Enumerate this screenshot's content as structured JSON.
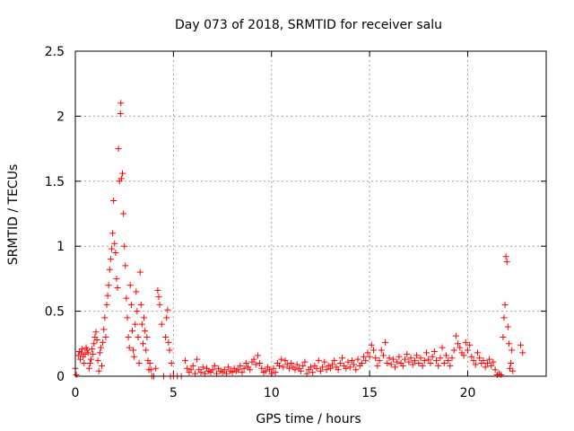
{
  "colors": {
    "series": "#ff0000",
    "grid": "#a0a0a0",
    "axis": "#000000",
    "background": "#ffffff"
  },
  "chart_data": {
    "type": "scatter",
    "title": "Day 073 of 2018, SRMTID for receiver salu",
    "xlabel": "GPS time / hours",
    "ylabel": "SRMTID / TECUs",
    "xlim": [
      0,
      24
    ],
    "ylim": [
      0,
      2.5
    ],
    "x_ticks": [
      0,
      5,
      10,
      15,
      20
    ],
    "x_tick_labels": [
      "0",
      "5",
      "10",
      "15",
      "20"
    ],
    "y_ticks": [
      0,
      0.5,
      1,
      1.5,
      2,
      2.5
    ],
    "y_tick_labels": [
      "0",
      "0.5",
      "1",
      "1.5",
      "2",
      "2.5"
    ],
    "grid": true,
    "marker": "plus",
    "series": [
      {
        "name": "SRMTID",
        "points": [
          [
            0.0,
            0.06
          ],
          [
            0.05,
            0.01
          ],
          [
            0.15,
            0.16
          ],
          [
            0.2,
            0.19
          ],
          [
            0.25,
            0.13
          ],
          [
            0.3,
            0.18
          ],
          [
            0.35,
            0.21
          ],
          [
            0.4,
            0.15
          ],
          [
            0.45,
            0.1
          ],
          [
            0.5,
            0.17
          ],
          [
            0.55,
            0.22
          ],
          [
            0.6,
            0.2
          ],
          [
            0.65,
            0.18
          ],
          [
            0.7,
            0.06
          ],
          [
            0.75,
            0.1
          ],
          [
            0.8,
            0.13
          ],
          [
            0.85,
            0.21
          ],
          [
            0.9,
            0.17
          ],
          [
            0.95,
            0.25
          ],
          [
            1.0,
            0.3
          ],
          [
            1.05,
            0.34
          ],
          [
            1.1,
            0.28
          ],
          [
            1.15,
            0.12
          ],
          [
            1.2,
            0.04
          ],
          [
            1.25,
            0.18
          ],
          [
            1.3,
            0.22
          ],
          [
            1.35,
            0.08
          ],
          [
            1.4,
            0.26
          ],
          [
            1.45,
            0.36
          ],
          [
            1.5,
            0.45
          ],
          [
            1.55,
            0.3
          ],
          [
            1.6,
            0.55
          ],
          [
            1.65,
            0.62
          ],
          [
            1.7,
            0.7
          ],
          [
            1.75,
            0.82
          ],
          [
            1.8,
            0.9
          ],
          [
            1.85,
            0.98
          ],
          [
            1.9,
            1.1
          ],
          [
            1.95,
            1.35
          ],
          [
            2.0,
            1.02
          ],
          [
            2.05,
            0.95
          ],
          [
            2.1,
            0.75
          ],
          [
            2.15,
            0.68
          ],
          [
            2.2,
            1.75
          ],
          [
            2.25,
            1.5
          ],
          [
            2.3,
            2.02
          ],
          [
            2.32,
            2.1
          ],
          [
            2.35,
            1.52
          ],
          [
            2.4,
            1.56
          ],
          [
            2.45,
            1.25
          ],
          [
            2.5,
            1.0
          ],
          [
            2.55,
            0.85
          ],
          [
            2.6,
            0.6
          ],
          [
            2.65,
            0.45
          ],
          [
            2.7,
            0.3
          ],
          [
            2.75,
            0.22
          ],
          [
            2.8,
            0.7
          ],
          [
            2.85,
            0.55
          ],
          [
            2.9,
            0.35
          ],
          [
            2.95,
            0.2
          ],
          [
            3.0,
            0.15
          ],
          [
            3.05,
            0.4
          ],
          [
            3.1,
            0.65
          ],
          [
            3.15,
            0.5
          ],
          [
            3.2,
            0.3
          ],
          [
            3.25,
            0.1
          ],
          [
            3.3,
            0.8
          ],
          [
            3.35,
            0.55
          ],
          [
            3.4,
            0.4
          ],
          [
            3.45,
            0.25
          ],
          [
            3.5,
            0.45
          ],
          [
            3.55,
            0.35
          ],
          [
            3.6,
            0.2
          ],
          [
            3.65,
            0.3
          ],
          [
            3.7,
            0.12
          ],
          [
            3.75,
            0.05
          ],
          [
            3.8,
            0.1
          ],
          [
            3.85,
            0.05
          ],
          [
            3.9,
            0.0
          ],
          [
            4.0,
            0.0
          ],
          [
            4.1,
            0.06
          ],
          [
            4.2,
            0.66
          ],
          [
            4.25,
            0.61
          ],
          [
            4.3,
            0.55
          ],
          [
            4.4,
            0.4
          ],
          [
            4.5,
            0.0
          ],
          [
            4.6,
            0.3
          ],
          [
            4.65,
            0.45
          ],
          [
            4.7,
            0.51
          ],
          [
            4.75,
            0.26
          ],
          [
            4.8,
            0.2
          ],
          [
            4.85,
            0.0
          ],
          [
            4.9,
            0.1
          ],
          [
            5.0,
            0.0
          ],
          [
            5.2,
            0.0
          ],
          [
            5.4,
            0.0
          ],
          [
            5.6,
            0.12
          ],
          [
            5.7,
            0.06
          ],
          [
            5.8,
            0.03
          ],
          [
            5.9,
            0.05
          ],
          [
            6.0,
            0.08
          ],
          [
            6.1,
            0.02
          ],
          [
            6.2,
            0.13
          ],
          [
            6.3,
            0.05
          ],
          [
            6.4,
            0.03
          ],
          [
            6.5,
            0.07
          ],
          [
            6.6,
            0.02
          ],
          [
            6.7,
            0.06
          ],
          [
            6.8,
            0.04
          ],
          [
            6.9,
            0.03
          ],
          [
            7.0,
            0.05
          ],
          [
            7.1,
            0.08
          ],
          [
            7.2,
            0.02
          ],
          [
            7.3,
            0.06
          ],
          [
            7.4,
            0.04
          ],
          [
            7.5,
            0.03
          ],
          [
            7.6,
            0.05
          ],
          [
            7.7,
            0.02
          ],
          [
            7.8,
            0.07
          ],
          [
            7.9,
            0.04
          ],
          [
            8.0,
            0.03
          ],
          [
            8.1,
            0.06
          ],
          [
            8.2,
            0.04
          ],
          [
            8.3,
            0.05
          ],
          [
            8.4,
            0.08
          ],
          [
            8.5,
            0.03
          ],
          [
            8.6,
            0.06
          ],
          [
            8.7,
            0.1
          ],
          [
            8.8,
            0.07
          ],
          [
            8.9,
            0.05
          ],
          [
            9.0,
            0.11
          ],
          [
            9.1,
            0.13
          ],
          [
            9.2,
            0.09
          ],
          [
            9.3,
            0.16
          ],
          [
            9.4,
            0.1
          ],
          [
            9.5,
            0.06
          ],
          [
            9.6,
            0.03
          ],
          [
            9.7,
            0.04
          ],
          [
            9.8,
            0.07
          ],
          [
            9.9,
            0.05
          ],
          [
            10.0,
            0.02
          ],
          [
            10.1,
            0.06
          ],
          [
            10.2,
            0.03
          ],
          [
            10.3,
            0.1
          ],
          [
            10.4,
            0.08
          ],
          [
            10.5,
            0.13
          ],
          [
            10.6,
            0.07
          ],
          [
            10.7,
            0.12
          ],
          [
            10.8,
            0.09
          ],
          [
            10.9,
            0.06
          ],
          [
            11.0,
            0.1
          ],
          [
            11.1,
            0.07
          ],
          [
            11.2,
            0.05
          ],
          [
            11.3,
            0.09
          ],
          [
            11.4,
            0.06
          ],
          [
            11.5,
            0.04
          ],
          [
            11.6,
            0.08
          ],
          [
            11.7,
            0.11
          ],
          [
            11.8,
            0.02
          ],
          [
            11.9,
            0.05
          ],
          [
            12.0,
            0.07
          ],
          [
            12.1,
            0.03
          ],
          [
            12.2,
            0.08
          ],
          [
            12.3,
            0.06
          ],
          [
            12.4,
            0.12
          ],
          [
            12.5,
            0.04
          ],
          [
            12.6,
            0.07
          ],
          [
            12.7,
            0.11
          ],
          [
            12.8,
            0.05
          ],
          [
            12.9,
            0.08
          ],
          [
            13.0,
            0.06
          ],
          [
            13.1,
            0.09
          ],
          [
            13.2,
            0.12
          ],
          [
            13.3,
            0.07
          ],
          [
            13.4,
            0.05
          ],
          [
            13.5,
            0.1
          ],
          [
            13.6,
            0.14
          ],
          [
            13.7,
            0.08
          ],
          [
            13.8,
            0.06
          ],
          [
            13.9,
            0.11
          ],
          [
            14.0,
            0.07
          ],
          [
            14.1,
            0.12
          ],
          [
            14.2,
            0.09
          ],
          [
            14.3,
            0.05
          ],
          [
            14.4,
            0.13
          ],
          [
            14.5,
            0.08
          ],
          [
            14.6,
            0.1
          ],
          [
            14.7,
            0.15
          ],
          [
            14.8,
            0.12
          ],
          [
            14.9,
            0.18
          ],
          [
            15.0,
            0.15
          ],
          [
            15.1,
            0.24
          ],
          [
            15.2,
            0.2
          ],
          [
            15.3,
            0.14
          ],
          [
            15.4,
            0.08
          ],
          [
            15.5,
            0.12
          ],
          [
            15.6,
            0.2
          ],
          [
            15.7,
            0.16
          ],
          [
            15.8,
            0.26
          ],
          [
            15.9,
            0.1
          ],
          [
            16.0,
            0.14
          ],
          [
            16.1,
            0.09
          ],
          [
            16.2,
            0.13
          ],
          [
            16.3,
            0.07
          ],
          [
            16.4,
            0.11
          ],
          [
            16.5,
            0.15
          ],
          [
            16.6,
            0.1
          ],
          [
            16.7,
            0.08
          ],
          [
            16.8,
            0.13
          ],
          [
            16.9,
            0.17
          ],
          [
            17.0,
            0.11
          ],
          [
            17.1,
            0.14
          ],
          [
            17.2,
            0.09
          ],
          [
            17.3,
            0.12
          ],
          [
            17.4,
            0.16
          ],
          [
            17.5,
            0.1
          ],
          [
            17.6,
            0.14
          ],
          [
            17.7,
            0.08
          ],
          [
            17.8,
            0.12
          ],
          [
            17.9,
            0.18
          ],
          [
            18.0,
            0.13
          ],
          [
            18.1,
            0.1
          ],
          [
            18.2,
            0.15
          ],
          [
            18.3,
            0.19
          ],
          [
            18.4,
            0.12
          ],
          [
            18.5,
            0.08
          ],
          [
            18.6,
            0.14
          ],
          [
            18.7,
            0.22
          ],
          [
            18.8,
            0.1
          ],
          [
            18.9,
            0.16
          ],
          [
            19.0,
            0.12
          ],
          [
            19.1,
            0.08
          ],
          [
            19.2,
            0.14
          ],
          [
            19.3,
            0.2
          ],
          [
            19.4,
            0.31
          ],
          [
            19.5,
            0.25
          ],
          [
            19.6,
            0.22
          ],
          [
            19.7,
            0.18
          ],
          [
            19.8,
            0.16
          ],
          [
            19.9,
            0.26
          ],
          [
            20.0,
            0.2
          ],
          [
            20.1,
            0.24
          ],
          [
            20.2,
            0.15
          ],
          [
            20.3,
            0.12
          ],
          [
            20.4,
            0.09
          ],
          [
            20.5,
            0.18
          ],
          [
            20.6,
            0.14
          ],
          [
            20.7,
            0.1
          ],
          [
            20.8,
            0.12
          ],
          [
            20.9,
            0.07
          ],
          [
            21.0,
            0.1
          ],
          [
            21.1,
            0.13
          ],
          [
            21.2,
            0.08
          ],
          [
            21.3,
            0.11
          ],
          [
            21.4,
            0.05
          ],
          [
            21.5,
            0.01
          ],
          [
            21.6,
            0.02
          ],
          [
            21.7,
            0.01
          ],
          [
            21.8,
            0.3
          ],
          [
            21.85,
            0.45
          ],
          [
            21.9,
            0.55
          ],
          [
            21.95,
            0.92
          ],
          [
            22.0,
            0.88
          ],
          [
            22.05,
            0.38
          ],
          [
            22.1,
            0.25
          ],
          [
            22.15,
            0.06
          ],
          [
            22.2,
            0.1
          ],
          [
            22.25,
            0.2
          ],
          [
            22.3,
            0.04
          ],
          [
            22.7,
            0.24
          ],
          [
            22.8,
            0.18
          ]
        ]
      }
    ]
  }
}
